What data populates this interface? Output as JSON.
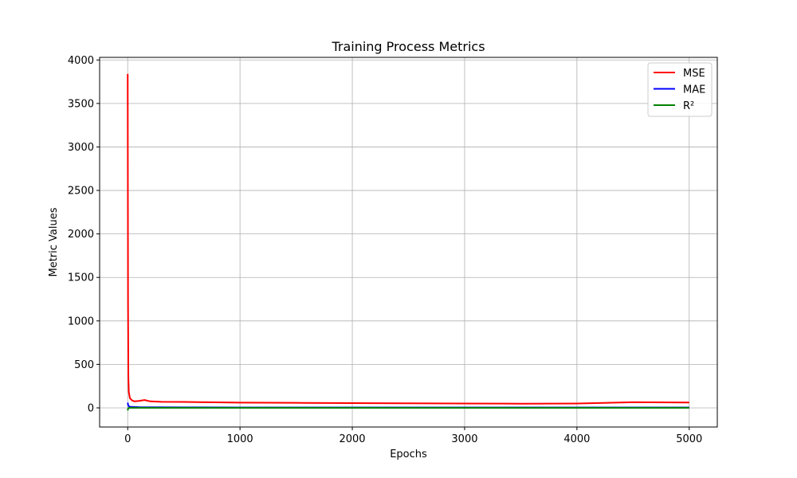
{
  "chart_data": {
    "type": "line",
    "title": "Training Process Metrics",
    "xlabel": "Epochs",
    "ylabel": "Metric Values",
    "xlim": [
      -250,
      5250
    ],
    "ylim": [
      -220,
      4030
    ],
    "xticks": [
      0,
      1000,
      2000,
      3000,
      4000,
      5000
    ],
    "yticks": [
      0,
      500,
      1000,
      1500,
      2000,
      2500,
      3000,
      3500,
      4000
    ],
    "grid": true,
    "legend_position": "top-right",
    "series": [
      {
        "name": "MSE",
        "color": "#ff0000",
        "points": [
          [
            0,
            3840
          ],
          [
            3,
            1200
          ],
          [
            6,
            350
          ],
          [
            10,
            180
          ],
          [
            20,
            110
          ],
          [
            40,
            85
          ],
          [
            60,
            75
          ],
          [
            100,
            80
          ],
          [
            150,
            90
          ],
          [
            200,
            75
          ],
          [
            300,
            70
          ],
          [
            500,
            68
          ],
          [
            700,
            65
          ],
          [
            1000,
            60
          ],
          [
            1500,
            58
          ],
          [
            2000,
            55
          ],
          [
            2500,
            52
          ],
          [
            3000,
            50
          ],
          [
            3500,
            48
          ],
          [
            4000,
            50
          ],
          [
            4500,
            65
          ],
          [
            5000,
            62
          ]
        ]
      },
      {
        "name": "MAE",
        "color": "#0000ff",
        "points": [
          [
            0,
            60
          ],
          [
            5,
            25
          ],
          [
            20,
            12
          ],
          [
            100,
            8
          ],
          [
            500,
            6
          ],
          [
            1000,
            5
          ],
          [
            2000,
            5
          ],
          [
            3000,
            4
          ],
          [
            4000,
            4
          ],
          [
            5000,
            5
          ]
        ]
      },
      {
        "name": "R²",
        "color": "#008000",
        "points": [
          [
            0,
            -30
          ],
          [
            5,
            -2
          ],
          [
            20,
            0.5
          ],
          [
            100,
            0.9
          ],
          [
            1000,
            0.95
          ],
          [
            5000,
            0.96
          ]
        ]
      }
    ]
  }
}
